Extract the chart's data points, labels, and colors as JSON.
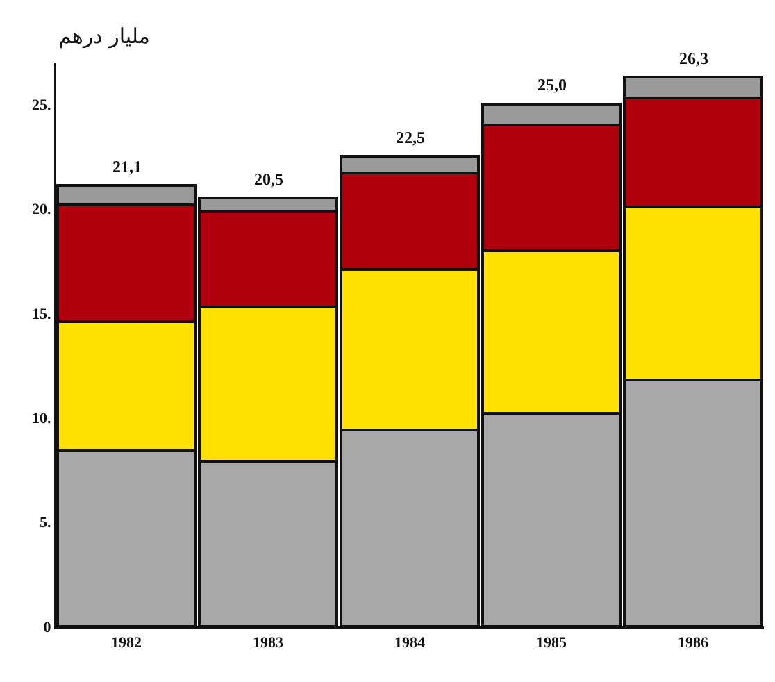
{
  "chart_data": {
    "type": "bar",
    "stacked": true,
    "ylabel": "مليار درهم",
    "categories": [
      "1982",
      "1983",
      "1984",
      "1985",
      "1986"
    ],
    "series": [
      {
        "color": "#a8a8a8",
        "values": [
          8.4,
          7.9,
          9.4,
          10.2,
          11.8
        ]
      },
      {
        "color": "#ffe000",
        "values": [
          6.2,
          7.4,
          7.7,
          7.8,
          8.3
        ]
      },
      {
        "color": "#b00010",
        "values": [
          5.6,
          4.6,
          4.6,
          6.0,
          5.2
        ]
      },
      {
        "color": "#9a9a9a",
        "values": [
          0.9,
          0.6,
          0.8,
          1.0,
          1.0
        ]
      }
    ],
    "totals": [
      "21,1",
      "20,5",
      "22,5",
      "25,0",
      "26,3"
    ],
    "ylim": [
      0,
      27
    ],
    "yticks": [
      0,
      {
        "value": 5,
        "label": "5."
      },
      {
        "value": 10,
        "label": "10."
      },
      {
        "value": 15,
        "label": "15."
      },
      {
        "value": 20,
        "label": "20."
      },
      {
        "value": 25,
        "label": "25."
      }
    ],
    "tick_labels": "xy"
  }
}
